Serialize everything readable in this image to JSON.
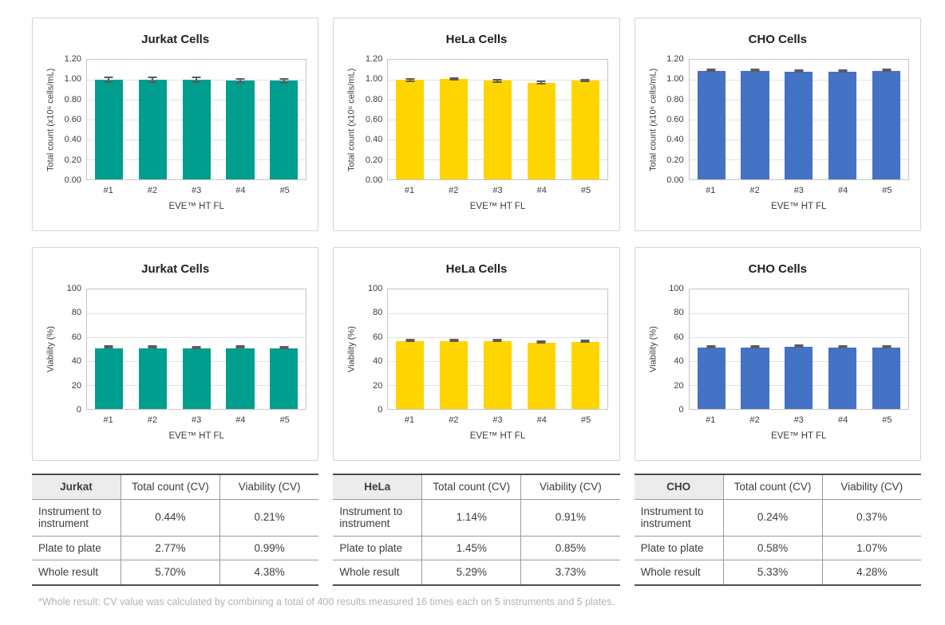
{
  "figure": {
    "footnote": "*Whole result: CV value was calculated by combining a total of 400 results measured 16 times each on 5 instruments and 5 plates."
  },
  "chart_data": [
    {
      "type": "bar",
      "title": "Jurkat Cells",
      "xlabel": "EVE™ HT FL",
      "ylabel": "Total count (x10⁶ cells/mL)",
      "categories": [
        "#1",
        "#2",
        "#3",
        "#4",
        "#5"
      ],
      "values": [
        1.0,
        1.0,
        1.0,
        0.99,
        0.99
      ],
      "errors": [
        0.03,
        0.03,
        0.03,
        0.03,
        0.03
      ],
      "ylim": [
        0,
        1.2
      ],
      "ymax": 1.2,
      "yticks": [
        "1.20",
        "1.00",
        "0.80",
        "0.60",
        "0.40",
        "0.20",
        "0.00"
      ],
      "grid": true,
      "legend": "none",
      "color": "#009E8F"
    },
    {
      "type": "bar",
      "title": "HeLa Cells",
      "xlabel": "EVE™ HT FL",
      "ylabel": "Total count (x10⁶ cells/mL)",
      "categories": [
        "#1",
        "#2",
        "#3",
        "#4",
        "#5"
      ],
      "values": [
        1.0,
        1.01,
        0.99,
        0.97,
        0.99
      ],
      "errors": [
        0.02,
        0.015,
        0.02,
        0.02,
        0.015
      ],
      "ylim": [
        0,
        1.2
      ],
      "ymax": 1.2,
      "yticks": [
        "1.20",
        "1.00",
        "0.80",
        "0.60",
        "0.40",
        "0.20",
        "0.00"
      ],
      "grid": true,
      "legend": "none",
      "color": "#FFD500"
    },
    {
      "type": "bar",
      "title": "CHO Cells",
      "xlabel": "EVE™ HT FL",
      "ylabel": "Total count (x10⁶ cells/mL)",
      "categories": [
        "#1",
        "#2",
        "#3",
        "#4",
        "#5"
      ],
      "values": [
        1.09,
        1.09,
        1.08,
        1.08,
        1.09
      ],
      "errors": [
        0.008,
        0.01,
        0.008,
        0.01,
        0.012
      ],
      "ylim": [
        0,
        1.2
      ],
      "ymax": 1.2,
      "yticks": [
        "1.20",
        "1.00",
        "0.80",
        "0.60",
        "0.40",
        "0.20",
        "0.00"
      ],
      "grid": true,
      "legend": "none",
      "color": "#4472C4"
    },
    {
      "type": "bar",
      "title": "Jurkat Cells",
      "xlabel": "EVE™ HT FL",
      "ylabel": "Viability (%)",
      "categories": [
        "#1",
        "#2",
        "#3",
        "#4",
        "#5"
      ],
      "values": [
        51,
        51,
        51,
        51,
        50.5
      ],
      "errors": [
        0.5,
        0.6,
        0.7,
        0.5,
        0.5
      ],
      "ylim": [
        0,
        100
      ],
      "ymax": 100,
      "yticks": [
        "100",
        "80",
        "60",
        "40",
        "20",
        "0"
      ],
      "grid": true,
      "legend": "none",
      "color": "#009E8F"
    },
    {
      "type": "bar",
      "title": "HeLa Cells",
      "xlabel": "EVE™ HT FL",
      "ylabel": "Viability (%)",
      "categories": [
        "#1",
        "#2",
        "#3",
        "#4",
        "#5"
      ],
      "values": [
        57,
        57,
        57,
        55.5,
        56
      ],
      "errors": [
        0.7,
        0.8,
        0.7,
        1.0,
        0.5
      ],
      "ylim": [
        0,
        100
      ],
      "ymax": 100,
      "yticks": [
        "100",
        "80",
        "60",
        "40",
        "20",
        "0"
      ],
      "grid": true,
      "legend": "none",
      "color": "#FFD500"
    },
    {
      "type": "bar",
      "title": "CHO Cells",
      "xlabel": "EVE™ HT FL",
      "ylabel": "Viability (%)",
      "categories": [
        "#1",
        "#2",
        "#3",
        "#4",
        "#5"
      ],
      "values": [
        51.5,
        51.5,
        52,
        51.5,
        51.5
      ],
      "errors": [
        0.6,
        0.7,
        0.7,
        0.7,
        0.8
      ],
      "ylim": [
        0,
        100
      ],
      "ymax": 100,
      "yticks": [
        "100",
        "80",
        "60",
        "40",
        "20",
        "0"
      ],
      "grid": true,
      "legend": "none",
      "color": "#4472C4"
    }
  ],
  "tables": [
    {
      "name": "Jurkat",
      "columns": [
        "Total count (CV)",
        "Viability (CV)"
      ],
      "rows": [
        {
          "label": "Instrument to instrument",
          "values": [
            "0.44%",
            "0.21%"
          ]
        },
        {
          "label": "Plate to plate",
          "values": [
            "2.77%",
            "0.99%"
          ]
        },
        {
          "label": "Whole result",
          "values": [
            "5.70%",
            "4.38%"
          ]
        }
      ]
    },
    {
      "name": "HeLa",
      "columns": [
        "Total count (CV)",
        "Viability (CV)"
      ],
      "rows": [
        {
          "label": "Instrument to instrument",
          "values": [
            "1.14%",
            "0.91%"
          ]
        },
        {
          "label": "Plate to plate",
          "values": [
            "1.45%",
            "0.85%"
          ]
        },
        {
          "label": "Whole result",
          "values": [
            "5.29%",
            "3.73%"
          ]
        }
      ]
    },
    {
      "name": "CHO",
      "columns": [
        "Total count (CV)",
        "Viability (CV)"
      ],
      "rows": [
        {
          "label": "Instrument to instrument",
          "values": [
            "0.24%",
            "0.37%"
          ]
        },
        {
          "label": "Plate to plate",
          "values": [
            "0.58%",
            "1.07%"
          ]
        },
        {
          "label": "Whole result",
          "values": [
            "5.33%",
            "4.28%"
          ]
        }
      ]
    }
  ]
}
